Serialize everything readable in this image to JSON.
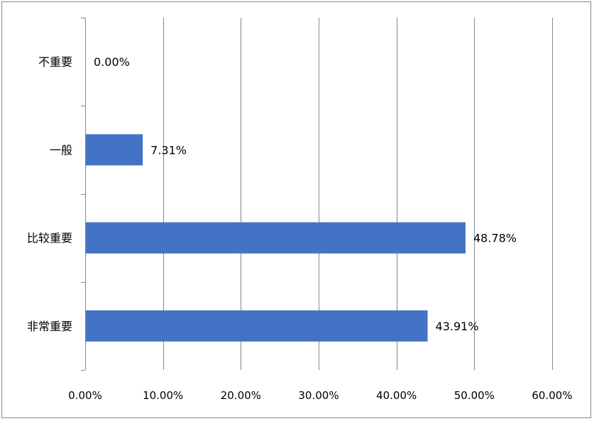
{
  "chart_data": {
    "type": "bar",
    "orientation": "horizontal",
    "categories": [
      "不重要",
      "一般",
      "比较重要",
      "非常重要"
    ],
    "values": [
      0.0,
      7.31,
      48.78,
      43.91
    ],
    "data_labels": [
      "0.00%",
      "7.31%",
      "48.78%",
      "43.91%"
    ],
    "xlim": [
      0,
      60
    ],
    "x_ticks": [
      0,
      10,
      20,
      30,
      40,
      50,
      60
    ],
    "x_tick_labels": [
      "0.00%",
      "10.00%",
      "20.00%",
      "30.00%",
      "40.00%",
      "50.00%",
      "60.00%"
    ],
    "grid": "vertical",
    "legend": "none",
    "bar_color": "#4472C4",
    "grid_color": "#868686",
    "axis_color": "#868686"
  }
}
